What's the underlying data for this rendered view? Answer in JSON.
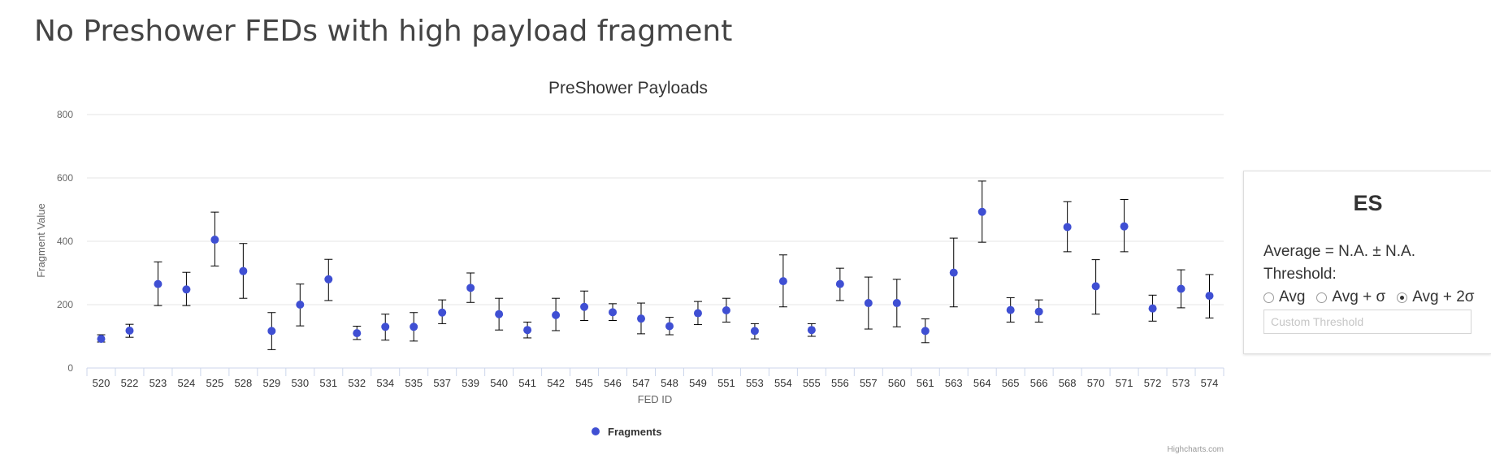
{
  "page": {
    "title": "No Preshower FEDs with high payload fragment"
  },
  "panel": {
    "title": "ES",
    "average_text": "Average = N.A. ± N.A.",
    "threshold_label": "Threshold:",
    "options": [
      {
        "label": "Avg",
        "checked": false
      },
      {
        "label": "Avg + σ",
        "checked": false
      },
      {
        "label": "Avg + 2σ",
        "checked": true
      }
    ],
    "custom_placeholder": "Custom Threshold"
  },
  "chart_data": {
    "type": "scatter",
    "title": "PreShower Payloads",
    "xlabel": "FED ID",
    "ylabel": "Fragment Value",
    "ylim": [
      0,
      800
    ],
    "yticks": [
      0,
      200,
      400,
      600,
      800
    ],
    "grid": true,
    "legend_position": "bottom-center",
    "credits": "Highcharts.com",
    "colors": {
      "point": "#3f4fd3",
      "errorbar": "#000000",
      "grid": "#e6e6e6",
      "axis": "#ccd6eb"
    },
    "categories": [
      "520",
      "522",
      "523",
      "524",
      "525",
      "528",
      "529",
      "530",
      "531",
      "532",
      "534",
      "535",
      "537",
      "539",
      "540",
      "541",
      "542",
      "545",
      "546",
      "547",
      "548",
      "549",
      "551",
      "553",
      "554",
      "555",
      "556",
      "557",
      "560",
      "561",
      "563",
      "564",
      "565",
      "566",
      "568",
      "570",
      "571",
      "572",
      "573",
      "574"
    ],
    "series": [
      {
        "name": "Fragments",
        "values": [
          92,
          118,
          265,
          248,
          405,
          306,
          117,
          200,
          280,
          110,
          130,
          130,
          175,
          253,
          170,
          120,
          167,
          193,
          176,
          156,
          132,
          173,
          182,
          117,
          274,
          120,
          265,
          205,
          205,
          117,
          301,
          493,
          183,
          178,
          445,
          258,
          447,
          188,
          250,
          228
        ],
        "error_low": [
          82,
          97,
          197,
          197,
          322,
          220,
          58,
          133,
          213,
          90,
          88,
          85,
          140,
          207,
          120,
          95,
          118,
          150,
          150,
          108,
          105,
          137,
          145,
          92,
          193,
          100,
          213,
          123,
          130,
          80,
          193,
          397,
          145,
          145,
          367,
          170,
          367,
          148,
          190,
          158
        ],
        "error_high": [
          105,
          138,
          335,
          302,
          492,
          393,
          175,
          265,
          343,
          132,
          170,
          175,
          215,
          300,
          220,
          145,
          220,
          243,
          203,
          205,
          160,
          210,
          220,
          140,
          357,
          140,
          315,
          287,
          280,
          155,
          410,
          590,
          222,
          215,
          525,
          342,
          532,
          230,
          310,
          295
        ]
      }
    ]
  }
}
